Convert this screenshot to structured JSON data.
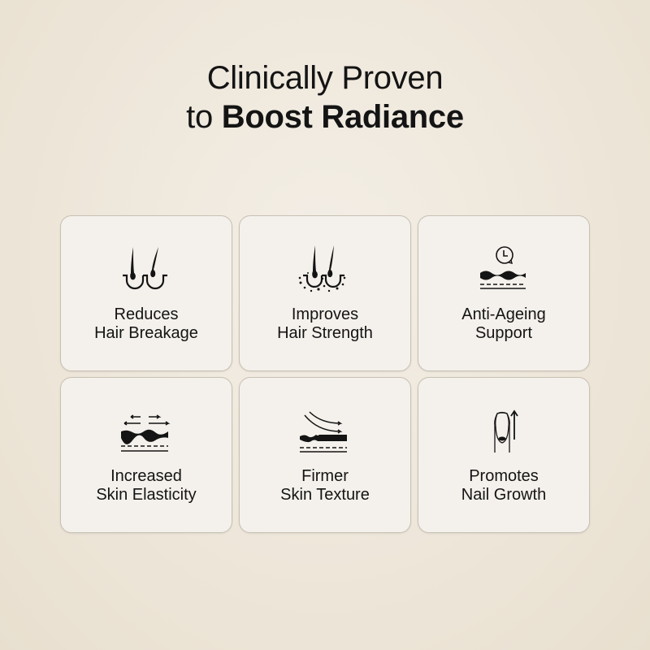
{
  "title": {
    "line1": "Clinically Proven",
    "line2_prefix": "to ",
    "line2_bold": "Boost Radiance"
  },
  "cards": [
    {
      "icon": "hair-follicle-icon",
      "line1": "Reduces",
      "line2": "Hair Breakage"
    },
    {
      "icon": "hair-follicle-nutrients-icon",
      "line1": "Improves",
      "line2": "Hair Strength"
    },
    {
      "icon": "clock-skin-icon",
      "line1": "Anti-Ageing",
      "line2": "Support"
    },
    {
      "icon": "skin-stretch-icon",
      "line1": "Increased",
      "line2": "Skin Elasticity"
    },
    {
      "icon": "skin-smooth-icon",
      "line1": "Firmer",
      "line2": "Skin Texture"
    },
    {
      "icon": "nail-growth-icon",
      "line1": "Promotes",
      "line2": "Nail Growth"
    }
  ]
}
